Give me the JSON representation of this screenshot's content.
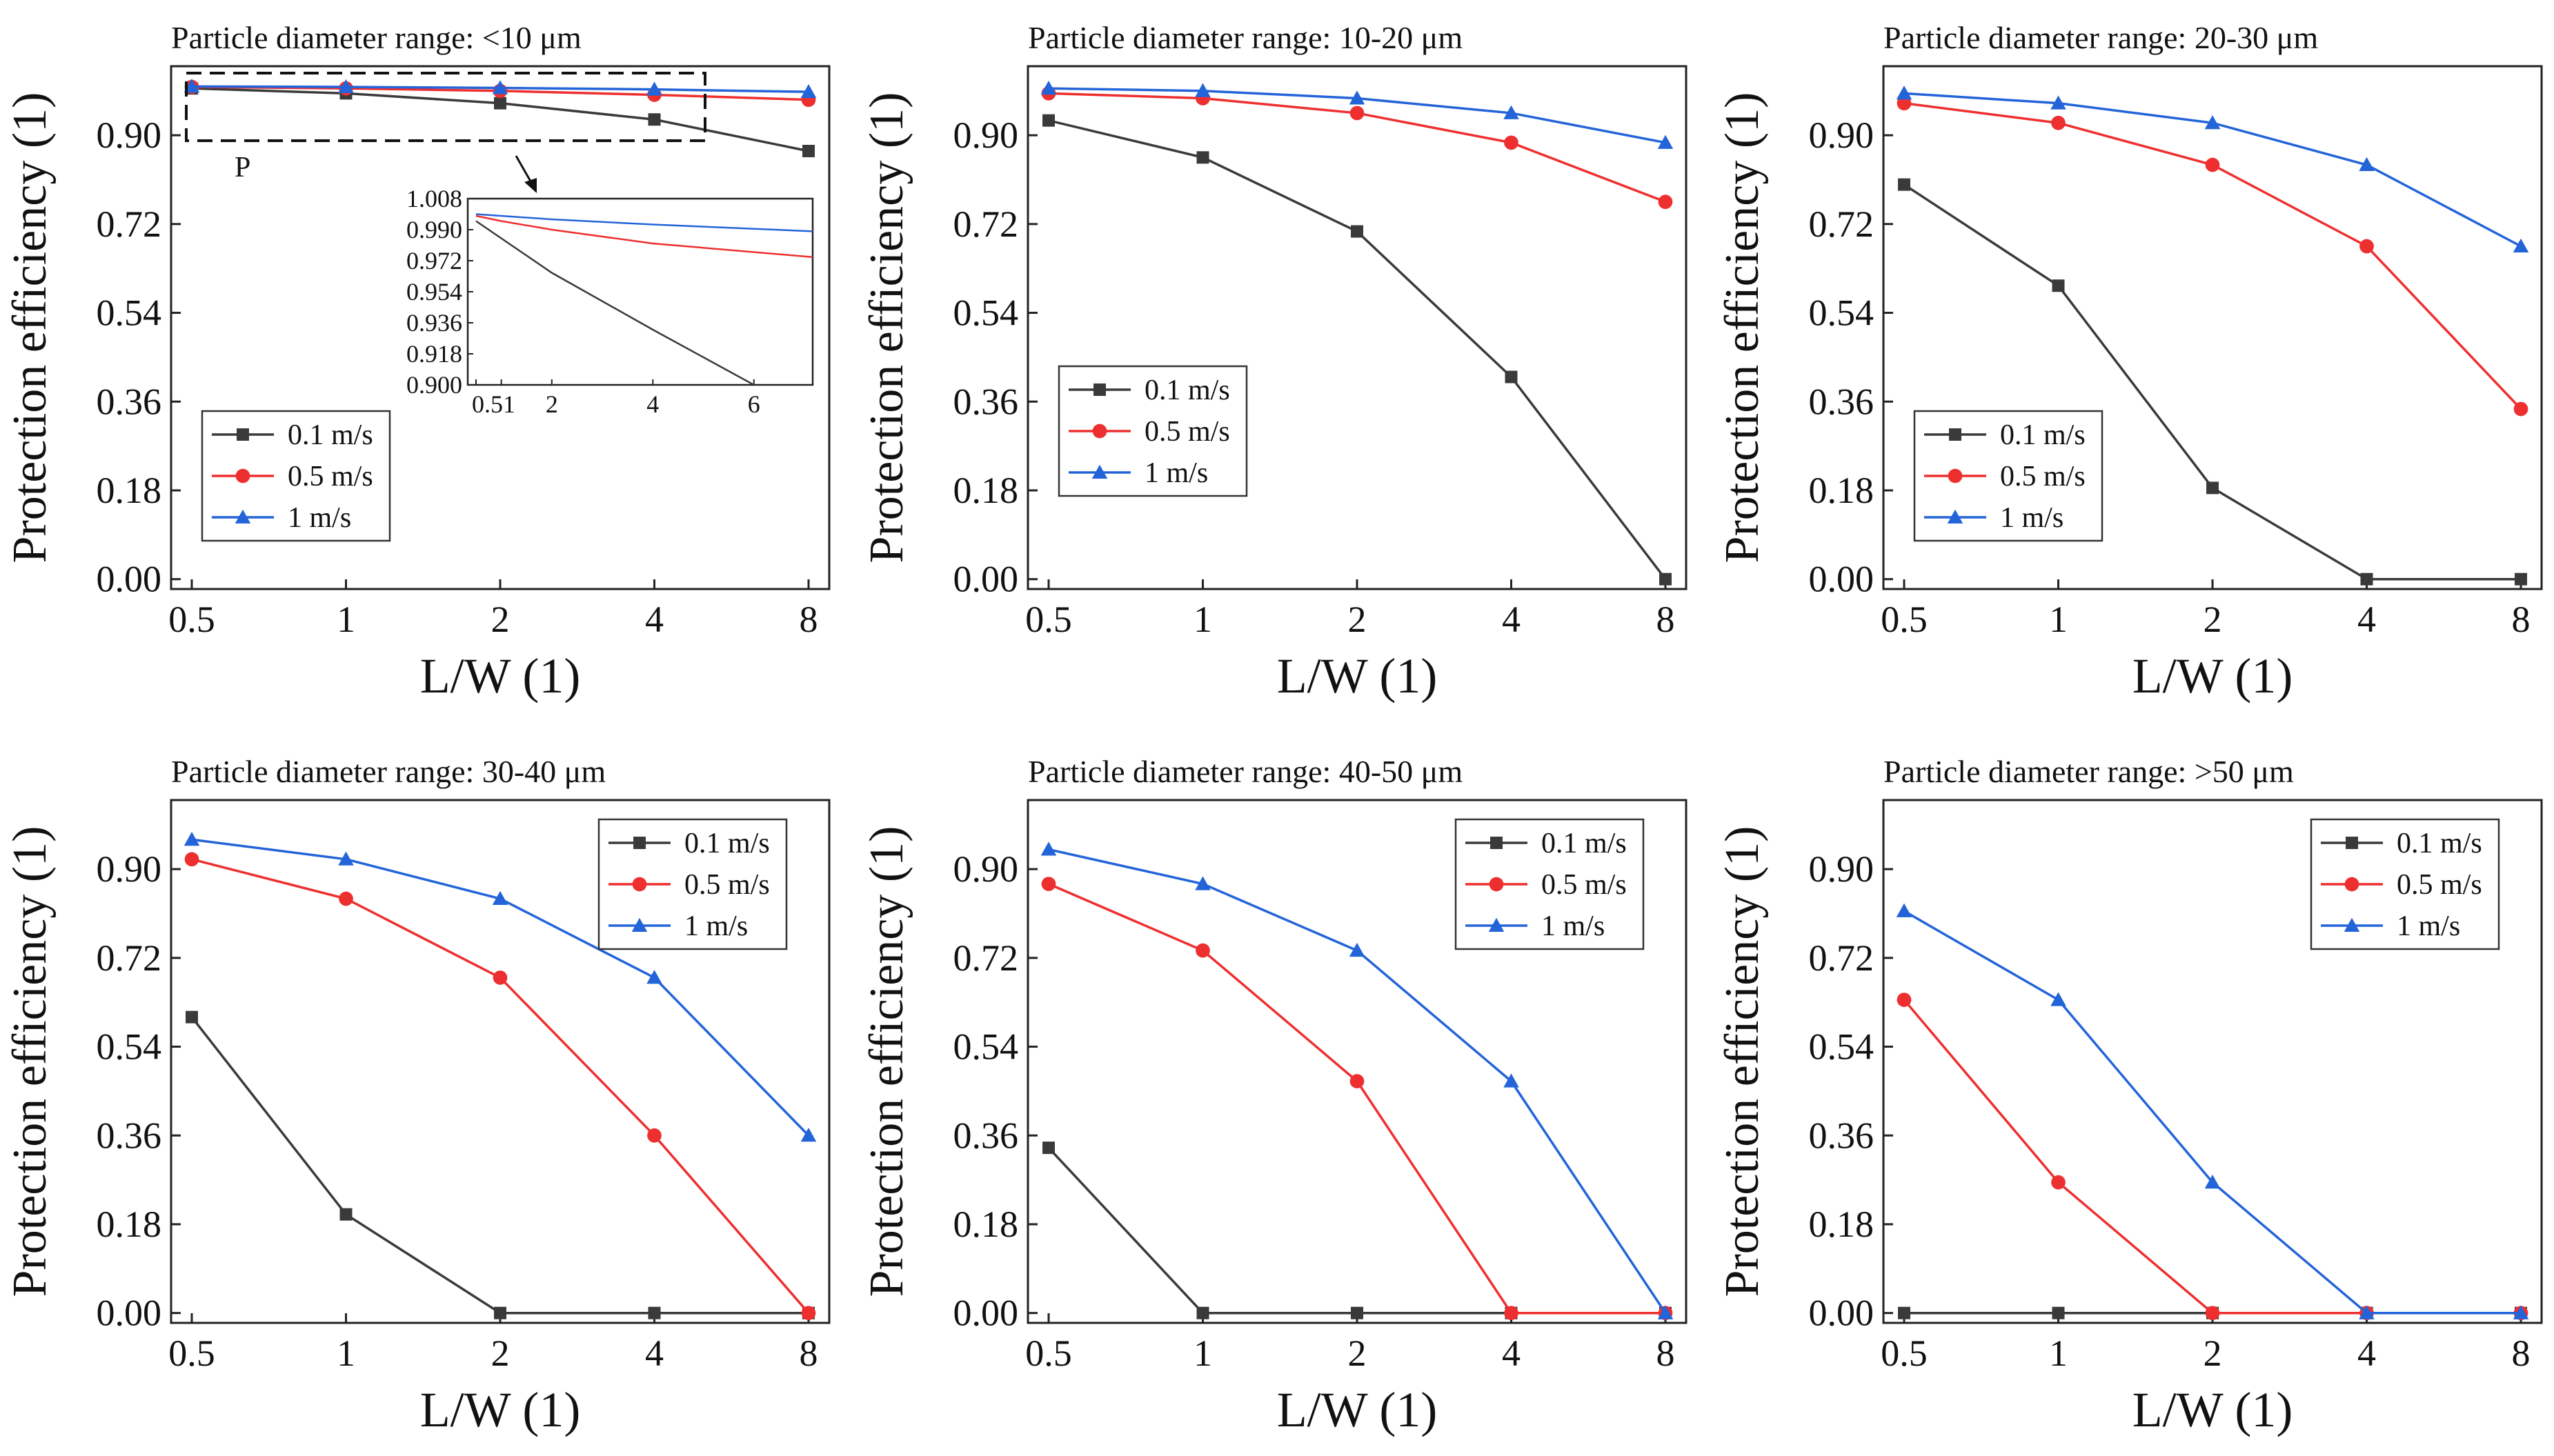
{
  "colors": {
    "0.1 m/s": "#3a3a3a",
    "0.5 m/s": "#ee2f2f",
    "1 m/s": "#2364d8"
  },
  "markers": {
    "0.1 m/s": "square",
    "0.5 m/s": "circle",
    "1 m/s": "triangle"
  },
  "chart_data": [
    {
      "type": "line",
      "title": "Particle diameter range: <10 μm",
      "xlabel": "L/W (1)",
      "ylabel": "Protection efficiency (1)",
      "x": [
        "0.5",
        "1",
        "2",
        "4",
        "8"
      ],
      "ylim": [
        -0.02,
        1.04
      ],
      "yticks": [
        "0.00",
        "0.18",
        "0.36",
        "0.54",
        "0.72",
        "0.90"
      ],
      "grid": false,
      "legend_position": "bottom-left",
      "series": [
        {
          "name": "0.1 m/s",
          "values": [
            0.995,
            0.985,
            0.965,
            0.932,
            0.868
          ]
        },
        {
          "name": "0.5 m/s",
          "values": [
            0.998,
            0.995,
            0.99,
            0.982,
            0.972
          ]
        },
        {
          "name": "1 m/s",
          "values": [
            0.999,
            0.998,
            0.996,
            0.993,
            0.988
          ]
        }
      ],
      "annotation": "P",
      "inset": {
        "yticks": [
          "1.008",
          "0.990",
          "0.972",
          "0.954",
          "0.936",
          "0.918",
          "0.900"
        ],
        "xtick_labels": [
          "0.5",
          "1",
          "2",
          "4",
          "6"
        ]
      }
    },
    {
      "type": "line",
      "title": "Particle diameter range: 10-20 μm",
      "xlabel": "L/W (1)",
      "ylabel": "Protection efficiency (1)",
      "x": [
        "0.5",
        "1",
        "2",
        "4",
        "8"
      ],
      "ylim": [
        -0.02,
        1.04
      ],
      "yticks": [
        "0.00",
        "0.18",
        "0.36",
        "0.54",
        "0.72",
        "0.90"
      ],
      "grid": false,
      "legend_position": "middle-left",
      "series": [
        {
          "name": "0.1 m/s",
          "values": [
            0.93,
            0.855,
            0.705,
            0.41,
            0.0
          ]
        },
        {
          "name": "0.5 m/s",
          "values": [
            0.985,
            0.975,
            0.945,
            0.885,
            0.765
          ]
        },
        {
          "name": "1 m/s",
          "values": [
            0.995,
            0.99,
            0.975,
            0.945,
            0.885
          ]
        }
      ]
    },
    {
      "type": "line",
      "title": "Particle diameter range: 20-30 μm",
      "xlabel": "L/W (1)",
      "ylabel": "Protection efficiency (1)",
      "x": [
        "0.5",
        "1",
        "2",
        "4",
        "8"
      ],
      "ylim": [
        -0.02,
        1.04
      ],
      "yticks": [
        "0.00",
        "0.18",
        "0.36",
        "0.54",
        "0.72",
        "0.90"
      ],
      "grid": false,
      "legend_position": "bottom-left",
      "series": [
        {
          "name": "0.1 m/s",
          "values": [
            0.8,
            0.595,
            0.185,
            0.0,
            0.0
          ]
        },
        {
          "name": "0.5 m/s",
          "values": [
            0.965,
            0.925,
            0.84,
            0.675,
            0.345
          ]
        },
        {
          "name": "1 m/s",
          "values": [
            0.985,
            0.965,
            0.925,
            0.84,
            0.675
          ]
        }
      ]
    },
    {
      "type": "line",
      "title": "Particle diameter range: 30-40 μm",
      "xlabel": "L/W (1)",
      "ylabel": "Protection efficiency (1)",
      "x": [
        "0.5",
        "1",
        "2",
        "4",
        "8"
      ],
      "ylim": [
        -0.02,
        1.04
      ],
      "yticks": [
        "0.00",
        "0.18",
        "0.36",
        "0.54",
        "0.72",
        "0.90"
      ],
      "grid": false,
      "legend_position": "top-right",
      "series": [
        {
          "name": "0.1 m/s",
          "values": [
            0.6,
            0.2,
            0.0,
            0.0,
            0.0
          ]
        },
        {
          "name": "0.5 m/s",
          "values": [
            0.92,
            0.84,
            0.68,
            0.36,
            0.0
          ]
        },
        {
          "name": "1 m/s",
          "values": [
            0.96,
            0.92,
            0.84,
            0.68,
            0.36
          ]
        }
      ]
    },
    {
      "type": "line",
      "title": "Particle diameter range: 40-50 μm",
      "xlabel": "L/W (1)",
      "ylabel": "Protection efficiency (1)",
      "x": [
        "0.5",
        "1",
        "2",
        "4",
        "8"
      ],
      "ylim": [
        -0.02,
        1.04
      ],
      "yticks": [
        "0.00",
        "0.18",
        "0.36",
        "0.54",
        "0.72",
        "0.90"
      ],
      "grid": false,
      "legend_position": "top-right",
      "series": [
        {
          "name": "0.1 m/s",
          "values": [
            0.335,
            0.0,
            0.0,
            0.0,
            0.0
          ]
        },
        {
          "name": "0.5 m/s",
          "values": [
            0.87,
            0.735,
            0.47,
            0.0,
            0.0
          ]
        },
        {
          "name": "1 m/s",
          "values": [
            0.94,
            0.87,
            0.735,
            0.47,
            0.0
          ]
        }
      ]
    },
    {
      "type": "line",
      "title": "Particle diameter range: >50 μm",
      "xlabel": "L/W (1)",
      "ylabel": "Protection efficiency (1)",
      "x": [
        "0.5",
        "1",
        "2",
        "4",
        "8"
      ],
      "ylim": [
        -0.02,
        1.04
      ],
      "yticks": [
        "0.00",
        "0.18",
        "0.36",
        "0.54",
        "0.72",
        "0.90"
      ],
      "grid": false,
      "legend_position": "top-right",
      "series": [
        {
          "name": "0.1 m/s",
          "values": [
            0.0,
            0.0,
            0.0,
            0.0,
            0.0
          ]
        },
        {
          "name": "0.5 m/s",
          "values": [
            0.635,
            0.265,
            0.0,
            0.0,
            0.0
          ]
        },
        {
          "name": "1 m/s",
          "values": [
            0.815,
            0.635,
            0.265,
            0.0,
            0.0
          ]
        }
      ]
    }
  ]
}
